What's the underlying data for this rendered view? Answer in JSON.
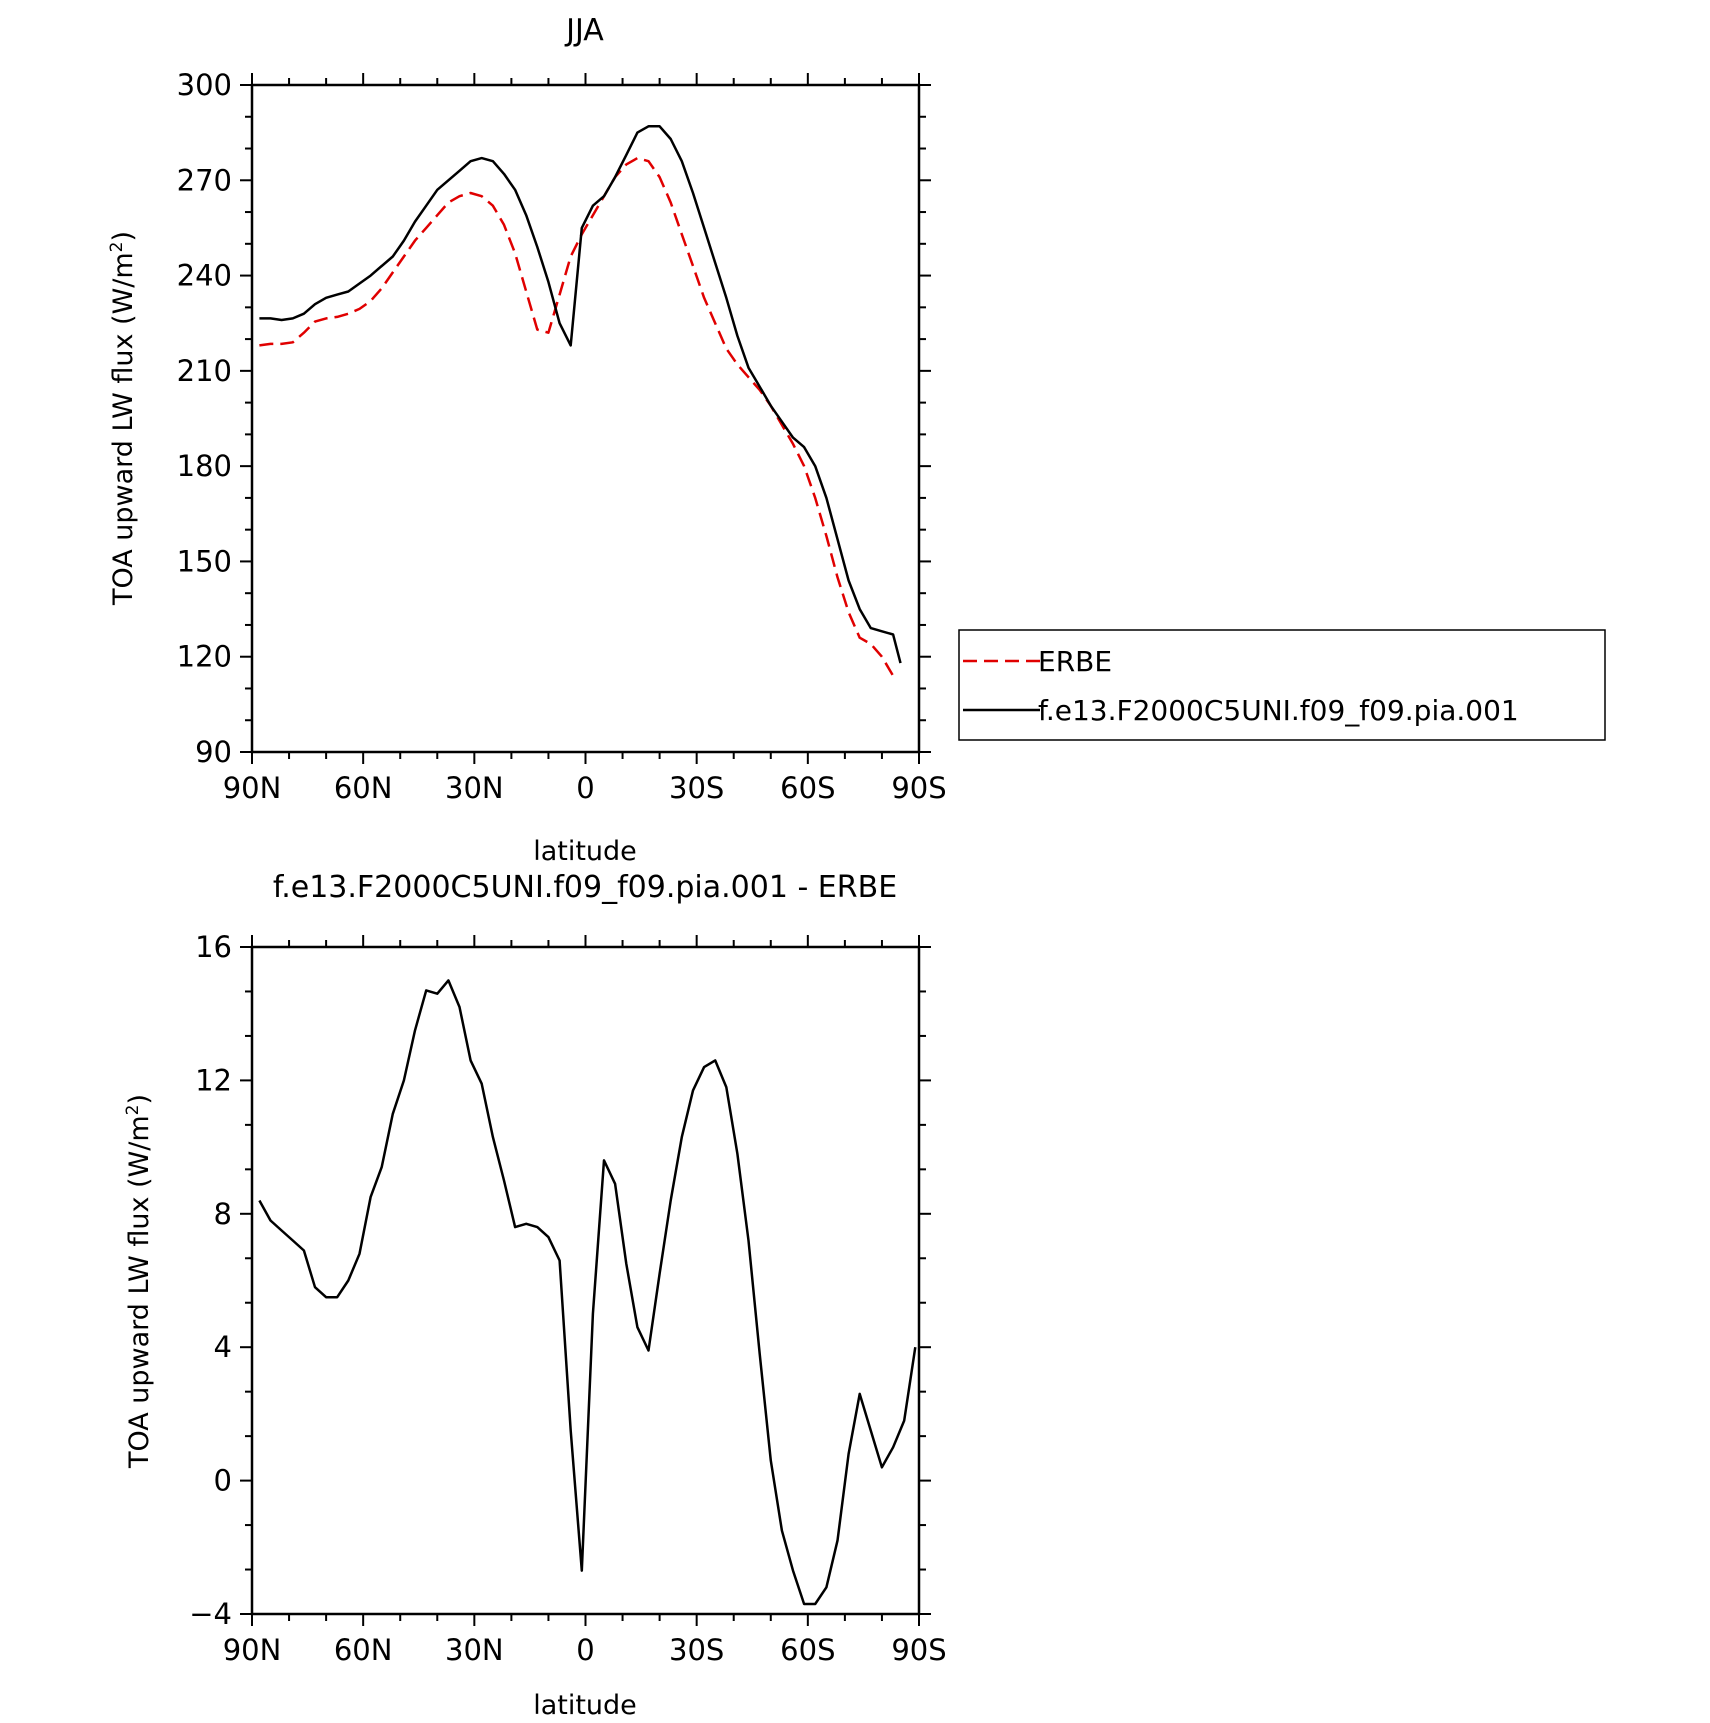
{
  "chart_data": [
    {
      "type": "line",
      "title": "JJA",
      "xlabel": "latitude",
      "ylabel": "TOA upward LW flux (W/m²)",
      "ylabel_main": "TOA upward LW flux (W/m",
      "ylabel_sup": "2",
      "ylabel_end": ")",
      "xlim": [
        90,
        -90
      ],
      "ylim": [
        90,
        300
      ],
      "x_ticks": [
        {
          "value": 90,
          "label": "90N"
        },
        {
          "value": 60,
          "label": "60N"
        },
        {
          "value": 30,
          "label": "30N"
        },
        {
          "value": 0,
          "label": "0"
        },
        {
          "value": -30,
          "label": "30S"
        },
        {
          "value": -60,
          "label": "60S"
        },
        {
          "value": -90,
          "label": "90S"
        }
      ],
      "y_ticks": [
        {
          "value": 90,
          "label": "90"
        },
        {
          "value": 120,
          "label": "120"
        },
        {
          "value": 150,
          "label": "150"
        },
        {
          "value": 180,
          "label": "180"
        },
        {
          "value": 210,
          "label": "210"
        },
        {
          "value": 240,
          "label": "240"
        },
        {
          "value": 270,
          "label": "270"
        },
        {
          "value": 300,
          "label": "300"
        }
      ],
      "legend_placement": "right",
      "series": [
        {
          "name": "ERBE",
          "color": "#e00000",
          "dash": true,
          "points": [
            [
              88,
              218
            ],
            [
              85,
              218.5
            ],
            [
              82,
              218.5
            ],
            [
              79,
              219
            ],
            [
              76,
              222
            ],
            [
              73,
              225.5
            ],
            [
              70,
              226.5
            ],
            [
              67,
              227
            ],
            [
              64,
              228
            ],
            [
              61,
              229.5
            ],
            [
              58,
              232
            ],
            [
              55,
              236
            ],
            [
              52,
              241
            ],
            [
              49,
              246
            ],
            [
              46,
              251
            ],
            [
              43,
              255
            ],
            [
              40,
              259
            ],
            [
              37,
              263
            ],
            [
              34,
              265
            ],
            [
              31,
              266
            ],
            [
              28,
              265
            ],
            [
              25,
              262
            ],
            [
              22,
              256
            ],
            [
              19,
              247
            ],
            [
              16,
              235
            ],
            [
              13,
              223
            ],
            [
              10,
              222
            ],
            [
              7,
              234
            ],
            [
              4,
              246
            ],
            [
              1,
              253
            ],
            [
              -2,
              259
            ],
            [
              -5,
              265
            ],
            [
              -8,
              271
            ],
            [
              -11,
              275
            ],
            [
              -14,
              277
            ],
            [
              -17,
              276
            ],
            [
              -20,
              271
            ],
            [
              -23,
              263
            ],
            [
              -26,
              253
            ],
            [
              -29,
              243
            ],
            [
              -32,
              233
            ],
            [
              -35,
              225
            ],
            [
              -38,
              217
            ],
            [
              -41,
              212
            ],
            [
              -44,
              208
            ],
            [
              -47,
              204
            ],
            [
              -50,
              199
            ],
            [
              -53,
              193
            ],
            [
              -56,
              187
            ],
            [
              -59,
              180
            ],
            [
              -62,
              170
            ],
            [
              -65,
              158
            ],
            [
              -68,
              145
            ],
            [
              -71,
              134
            ],
            [
              -74,
              126
            ],
            [
              -77,
              124
            ],
            [
              -80,
              120
            ],
            [
              -83,
              114
            ]
          ]
        },
        {
          "name": "f.e13.F2000C5UNI.f09_f09.pia.001",
          "color": "#000000",
          "dash": false,
          "points": [
            [
              88,
              226.5
            ],
            [
              85,
              226.5
            ],
            [
              82,
              226
            ],
            [
              79,
              226.5
            ],
            [
              76,
              228
            ],
            [
              73,
              231
            ],
            [
              70,
              233
            ],
            [
              67,
              234
            ],
            [
              64,
              235
            ],
            [
              61,
              237.5
            ],
            [
              58,
              240
            ],
            [
              55,
              243
            ],
            [
              52,
              246
            ],
            [
              49,
              251
            ],
            [
              46,
              257
            ],
            [
              43,
              262
            ],
            [
              40,
              267
            ],
            [
              37,
              270
            ],
            [
              34,
              273
            ],
            [
              31,
              276
            ],
            [
              28,
              277
            ],
            [
              25,
              276
            ],
            [
              22,
              272
            ],
            [
              19,
              267
            ],
            [
              16,
              259
            ],
            [
              13,
              249
            ],
            [
              10,
              238
            ],
            [
              7,
              225
            ],
            [
              4,
              218
            ],
            [
              1,
              255
            ],
            [
              -2,
              262
            ],
            [
              -5,
              265
            ],
            [
              -8,
              271
            ],
            [
              -11,
              278
            ],
            [
              -14,
              285
            ],
            [
              -17,
              287
            ],
            [
              -20,
              287
            ],
            [
              -23,
              283
            ],
            [
              -26,
              276
            ],
            [
              -29,
              266
            ],
            [
              -32,
              255
            ],
            [
              -35,
              244
            ],
            [
              -38,
              233
            ],
            [
              -41,
              221
            ],
            [
              -44,
              211
            ],
            [
              -47,
              205
            ],
            [
              -50,
              199
            ],
            [
              -53,
              194
            ],
            [
              -56,
              189
            ],
            [
              -59,
              186
            ],
            [
              -62,
              180
            ],
            [
              -65,
              170
            ],
            [
              -68,
              157
            ],
            [
              -71,
              144
            ],
            [
              -74,
              135
            ],
            [
              -77,
              129
            ],
            [
              -80,
              128
            ],
            [
              -83,
              127
            ],
            [
              -85,
              118
            ]
          ]
        }
      ]
    },
    {
      "type": "line",
      "title": "f.e13.F2000C5UNI.f09_f09.pia.001 - ERBE",
      "xlabel": "latitude",
      "ylabel": "TOA upward LW flux (W/m²)",
      "ylabel_main": "TOA upward LW flux (W/m",
      "ylabel_sup": "2",
      "ylabel_end": ")",
      "xlim": [
        90,
        -90
      ],
      "ylim": [
        -4,
        16
      ],
      "x_ticks": [
        {
          "value": 90,
          "label": "90N"
        },
        {
          "value": 60,
          "label": "60N"
        },
        {
          "value": 30,
          "label": "30N"
        },
        {
          "value": 0,
          "label": "0"
        },
        {
          "value": -30,
          "label": "30S"
        },
        {
          "value": -60,
          "label": "60S"
        },
        {
          "value": -90,
          "label": "90S"
        }
      ],
      "y_ticks": [
        {
          "value": -4,
          "label": "−4"
        },
        {
          "value": 0,
          "label": "0"
        },
        {
          "value": 4,
          "label": "4"
        },
        {
          "value": 8,
          "label": "8"
        },
        {
          "value": 12,
          "label": "12"
        },
        {
          "value": 16,
          "label": "16"
        }
      ],
      "series": [
        {
          "color": "#000000",
          "dash": false,
          "points": [
            [
              88,
              8.4
            ],
            [
              85,
              7.8
            ],
            [
              82,
              7.5
            ],
            [
              79,
              7.2
            ],
            [
              76,
              6.9
            ],
            [
              73,
              5.8
            ],
            [
              70,
              5.5
            ],
            [
              67,
              5.5
            ],
            [
              64,
              6.0
            ],
            [
              61,
              6.8
            ],
            [
              58,
              8.5
            ],
            [
              55,
              9.4
            ],
            [
              52,
              11.0
            ],
            [
              49,
              12.0
            ],
            [
              46,
              13.5
            ],
            [
              43,
              14.7
            ],
            [
              40,
              14.6
            ],
            [
              37,
              15.0
            ],
            [
              34,
              14.2
            ],
            [
              31,
              12.6
            ],
            [
              28,
              11.9
            ],
            [
              25,
              10.3
            ],
            [
              22,
              9.0
            ],
            [
              19,
              7.6
            ],
            [
              16,
              7.7
            ],
            [
              13,
              7.6
            ],
            [
              10,
              7.3
            ],
            [
              7,
              6.6
            ],
            [
              4,
              1.5
            ],
            [
              1,
              -2.7
            ],
            [
              -2,
              5.0
            ],
            [
              -5,
              9.6
            ],
            [
              -8,
              8.9
            ],
            [
              -11,
              6.5
            ],
            [
              -14,
              4.6
            ],
            [
              -17,
              3.9
            ],
            [
              -20,
              6.2
            ],
            [
              -23,
              8.4
            ],
            [
              -26,
              10.3
            ],
            [
              -29,
              11.7
            ],
            [
              -32,
              12.4
            ],
            [
              -35,
              12.6
            ],
            [
              -38,
              11.8
            ],
            [
              -41,
              9.8
            ],
            [
              -44,
              7.2
            ],
            [
              -47,
              3.8
            ],
            [
              -50,
              0.6
            ],
            [
              -53,
              -1.5
            ],
            [
              -56,
              -2.7
            ],
            [
              -59,
              -3.7
            ],
            [
              -62,
              -3.7
            ],
            [
              -65,
              -3.2
            ],
            [
              -68,
              -1.8
            ],
            [
              -71,
              0.8
            ],
            [
              -74,
              2.6
            ],
            [
              -77,
              1.5
            ],
            [
              -80,
              0.4
            ],
            [
              -83,
              1.0
            ],
            [
              -86,
              1.8
            ],
            [
              -89,
              4.0
            ]
          ]
        }
      ]
    }
  ]
}
